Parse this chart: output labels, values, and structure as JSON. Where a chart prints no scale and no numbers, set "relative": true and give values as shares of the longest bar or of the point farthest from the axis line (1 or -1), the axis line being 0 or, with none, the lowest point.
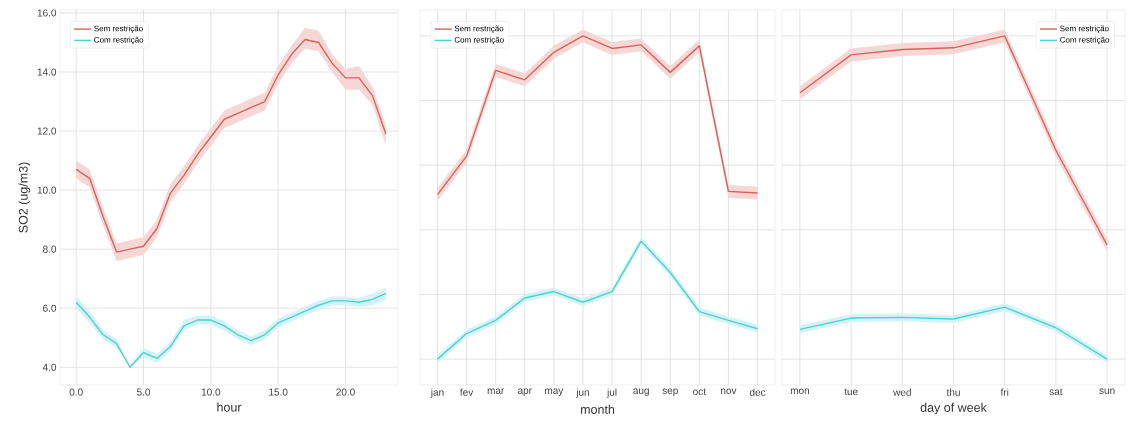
{
  "chart_data": [
    {
      "type": "line",
      "xlabel": "hour",
      "ylabel": "SO2 (ug/m3)",
      "x": [
        0,
        1,
        2,
        3,
        4,
        5,
        6,
        7,
        8,
        9,
        10,
        11,
        12,
        13,
        14,
        15,
        16,
        17,
        18,
        19,
        20,
        21,
        22,
        23
      ],
      "series": [
        {
          "name": "Sem restrição",
          "color": "#d9625a",
          "values": [
            10.7,
            10.4,
            9.1,
            7.9,
            8.0,
            8.1,
            8.7,
            9.9,
            10.5,
            11.2,
            11.8,
            12.4,
            12.6,
            12.8,
            13.0,
            13.9,
            14.6,
            15.1,
            15.0,
            14.3,
            13.8,
            13.8,
            13.2,
            11.9
          ],
          "lower": [
            10.4,
            10.1,
            8.8,
            7.6,
            7.7,
            7.8,
            8.4,
            9.6,
            10.2,
            10.9,
            11.5,
            12.1,
            12.3,
            12.5,
            12.7,
            13.6,
            14.3,
            14.8,
            14.7,
            14.0,
            13.4,
            13.4,
            12.9,
            11.5
          ],
          "upper": [
            11.0,
            10.7,
            9.4,
            8.2,
            8.3,
            8.4,
            9.0,
            10.2,
            10.8,
            11.5,
            12.1,
            12.7,
            12.9,
            13.1,
            13.3,
            14.2,
            14.9,
            15.5,
            15.4,
            14.6,
            14.1,
            14.2,
            13.5,
            12.2
          ]
        },
        {
          "name": "Com restrição",
          "color": "#4fd0d6",
          "values": [
            6.2,
            5.7,
            5.1,
            4.8,
            4.0,
            4.5,
            4.3,
            4.7,
            5.4,
            5.6,
            5.6,
            5.4,
            5.1,
            4.9,
            5.1,
            5.5,
            5.7,
            5.9,
            6.1,
            6.25,
            6.25,
            6.2,
            6.3,
            6.5
          ],
          "lower": [
            6.0,
            5.5,
            4.95,
            4.65,
            4.0,
            4.35,
            4.15,
            4.55,
            5.25,
            5.45,
            5.45,
            5.25,
            4.95,
            4.75,
            4.95,
            5.35,
            5.55,
            5.75,
            5.95,
            6.1,
            6.1,
            6.05,
            6.1,
            6.3
          ],
          "upper": [
            6.4,
            5.9,
            5.25,
            4.95,
            4.05,
            4.65,
            4.45,
            4.85,
            5.6,
            5.75,
            5.75,
            5.55,
            5.25,
            5.05,
            5.25,
            5.65,
            5.85,
            6.05,
            6.25,
            6.4,
            6.4,
            6.35,
            6.5,
            6.7
          ]
        }
      ],
      "xlim": [
        -1.2,
        23.9
      ],
      "ylim": [
        3.4,
        16.1
      ],
      "xticks": [
        {
          "value": 0,
          "label": "0.0"
        },
        {
          "value": 5,
          "label": "5.0"
        },
        {
          "value": 10,
          "label": "10.0"
        },
        {
          "value": 15,
          "label": "15.0"
        },
        {
          "value": 20,
          "label": "20.0"
        }
      ],
      "yticks": [
        {
          "value": 4,
          "label": "4.0"
        },
        {
          "value": 6,
          "label": "6.0"
        },
        {
          "value": 8,
          "label": "8.0"
        },
        {
          "value": 10,
          "label": "10.0"
        },
        {
          "value": 12,
          "label": "12.0"
        },
        {
          "value": 14,
          "label": "14.0"
        },
        {
          "value": 16,
          "label": "16.0"
        }
      ],
      "grid": true,
      "legend": "top left"
    },
    {
      "type": "line",
      "xlabel": "month",
      "categories": [
        "jan",
        "fev",
        "mar",
        "apr",
        "may",
        "jun",
        "jul",
        "aug",
        "sep",
        "oct",
        "nov",
        "dec"
      ],
      "relative": true,
      "tick_labels": "x",
      "series": [
        {
          "name": "Sem restrição",
          "color": "#d9625a",
          "values": [
            0.509,
            0.628,
            0.893,
            0.864,
            0.949,
            1.0,
            0.961,
            0.972,
            0.887,
            0.969,
            0.519,
            0.514
          ],
          "lower": [
            0.489,
            0.608,
            0.873,
            0.844,
            0.929,
            0.98,
            0.941,
            0.952,
            0.867,
            0.949,
            0.499,
            0.494
          ],
          "upper": [
            0.529,
            0.648,
            0.913,
            0.884,
            0.969,
            1.02,
            0.981,
            0.992,
            0.907,
            0.989,
            0.539,
            0.534
          ]
        },
        {
          "name": "Com restrição",
          "color": "#4fd0d6",
          "values": [
            0,
            0.079,
            0.12,
            0.189,
            0.209,
            0.176,
            0.209,
            0.365,
            0.268,
            0.147,
            0.12,
            0.094
          ],
          "lower": [
            -0.012,
            0.067,
            0.108,
            0.177,
            0.197,
            0.164,
            0.197,
            0.353,
            0.256,
            0.135,
            0.108,
            0.082
          ],
          "upper": [
            0.012,
            0.091,
            0.132,
            0.201,
            0.221,
            0.188,
            0.221,
            0.377,
            0.28,
            0.159,
            0.132,
            0.106
          ]
        }
      ],
      "grid": true,
      "legend": "top left"
    },
    {
      "type": "line",
      "xlabel": "day of week",
      "categories": [
        "mon",
        "tue",
        "wed",
        "thu",
        "fri",
        "sat",
        "sun"
      ],
      "relative": true,
      "tick_labels": "x",
      "series": [
        {
          "name": "Sem restrição",
          "color": "#d9625a",
          "values": [
            0.824,
            0.941,
            0.958,
            0.963,
            1.0,
            0.646,
            0.353
          ],
          "lower": [
            0.804,
            0.921,
            0.938,
            0.943,
            0.98,
            0.626,
            0.333
          ],
          "upper": [
            0.844,
            0.961,
            0.978,
            0.983,
            1.02,
            0.666,
            0.373
          ]
        },
        {
          "name": "Com restrição",
          "color": "#4fd0d6",
          "values": [
            0.092,
            0.127,
            0.129,
            0.124,
            0.161,
            0.097,
            0
          ],
          "lower": [
            0.08,
            0.115,
            0.117,
            0.112,
            0.149,
            0.085,
            -0.012
          ],
          "upper": [
            0.104,
            0.139,
            0.141,
            0.136,
            0.173,
            0.109,
            0.012
          ]
        }
      ],
      "grid": true,
      "legend": "top right"
    }
  ]
}
